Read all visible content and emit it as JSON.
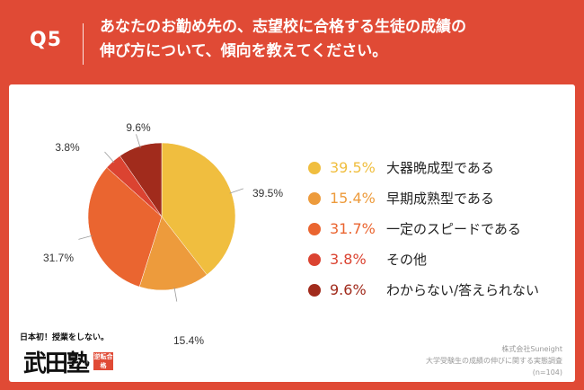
{
  "header": {
    "question_number": "Q5",
    "title_line1": "あなたのお勤め先の、志望校に合格する生徒の成績の",
    "title_line2": "伸び方について、傾向を教えてください。"
  },
  "chart_data": {
    "type": "pie",
    "unit": "%",
    "slices": [
      {
        "label": "大器晩成型である",
        "value": 39.5,
        "display": "39.5%",
        "color": "#f0be3f"
      },
      {
        "label": "早期成熟型である",
        "value": 15.4,
        "display": "15.4%",
        "color": "#ed9b3c"
      },
      {
        "label": "一定のスピードである",
        "value": 31.7,
        "display": "31.7%",
        "color": "#ea6530"
      },
      {
        "label": "その他",
        "value": 3.8,
        "display": "3.8%",
        "color": "#db4331"
      },
      {
        "label": "わからない/答えられない",
        "value": 9.6,
        "display": "9.6%",
        "color": "#a12b1c"
      }
    ]
  },
  "logo": {
    "tagline": "日本初！授業をしない。",
    "name": "武田塾",
    "stamp": "逆転合格"
  },
  "source": {
    "company": "株式会社Suneight",
    "survey": "大学受験生の成績の伸びに関する実態調査",
    "sample": "(n=104)"
  }
}
